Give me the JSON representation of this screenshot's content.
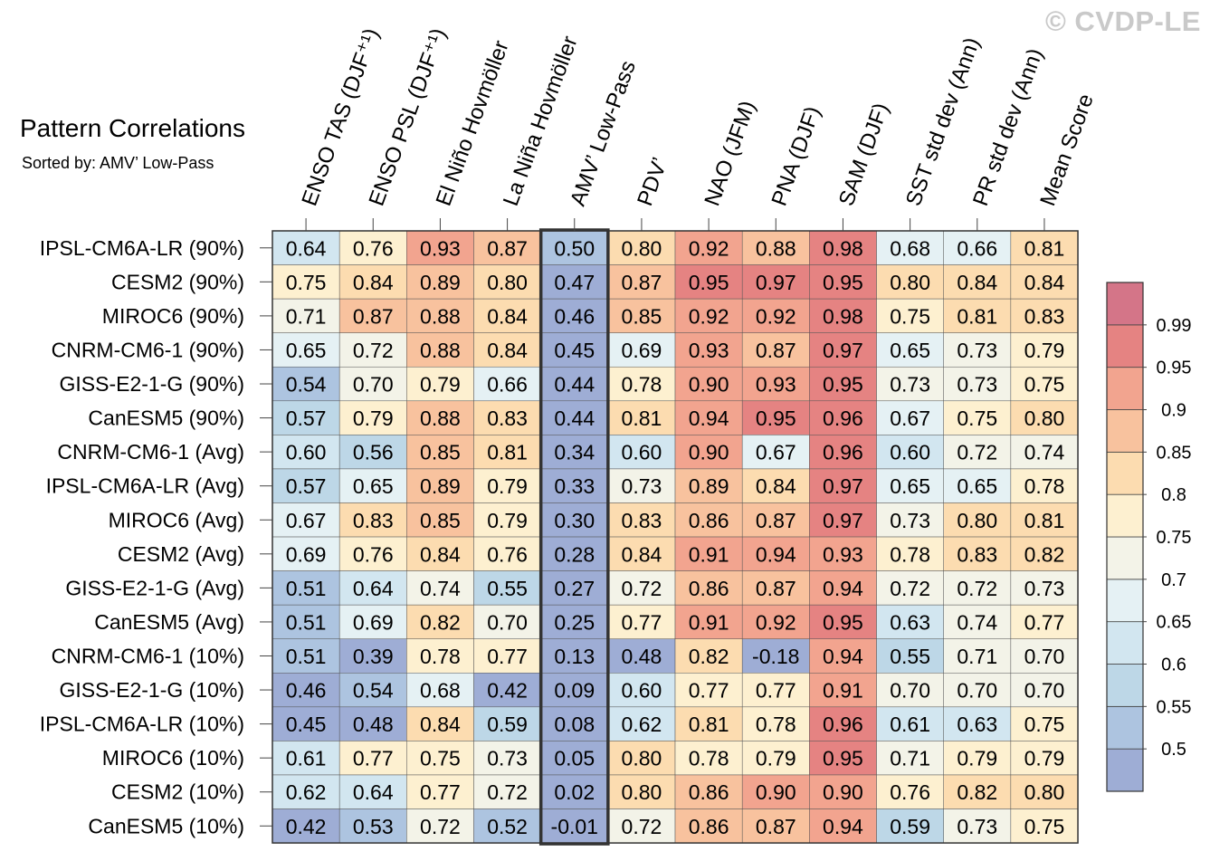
{
  "watermark": "© CVDP-LE",
  "chart_data": {
    "type": "heatmap",
    "title": "Pattern Correlations",
    "subtitle": "Sorted by: AMV’ Low-Pass",
    "columns": [
      "ENSO TAS (DJF⁺¹)",
      "ENSO PSL (DJF⁺¹)",
      "El Niño Hovmöller",
      "La Niña Hovmöller",
      "AMV’ Low-Pass",
      "PDV’",
      "NAO (JFM)",
      "PNA (DJF)",
      "SAM (DJF)",
      "SST std dev (Ann)",
      "PR std dev (Ann)",
      "Mean Score"
    ],
    "highlighted_column": "AMV’ Low-Pass",
    "rows": [
      "IPSL-CM6A-LR (90%)",
      "CESM2 (90%)",
      "MIROC6 (90%)",
      "CNRM-CM6-1 (90%)",
      "GISS-E2-1-G (90%)",
      "CanESM5 (90%)",
      "CNRM-CM6-1 (Avg)",
      "IPSL-CM6A-LR (Avg)",
      "MIROC6 (Avg)",
      "CESM2 (Avg)",
      "GISS-E2-1-G (Avg)",
      "CanESM5 (Avg)",
      "CNRM-CM6-1 (10%)",
      "GISS-E2-1-G (10%)",
      "IPSL-CM6A-LR (10%)",
      "MIROC6 (10%)",
      "CESM2 (10%)",
      "CanESM5 (10%)"
    ],
    "values": [
      [
        "0.64",
        "0.76",
        "0.93",
        "0.87",
        "0.50",
        "0.80",
        "0.92",
        "0.88",
        "0.98",
        "0.68",
        "0.66",
        "0.81"
      ],
      [
        "0.75",
        "0.84",
        "0.89",
        "0.80",
        "0.47",
        "0.87",
        "0.95",
        "0.97",
        "0.95",
        "0.80",
        "0.84",
        "0.84"
      ],
      [
        "0.71",
        "0.87",
        "0.88",
        "0.84",
        "0.46",
        "0.85",
        "0.92",
        "0.92",
        "0.98",
        "0.75",
        "0.81",
        "0.83"
      ],
      [
        "0.65",
        "0.72",
        "0.88",
        "0.84",
        "0.45",
        "0.69",
        "0.93",
        "0.87",
        "0.97",
        "0.65",
        "0.73",
        "0.79"
      ],
      [
        "0.54",
        "0.70",
        "0.79",
        "0.66",
        "0.44",
        "0.78",
        "0.90",
        "0.93",
        "0.95",
        "0.73",
        "0.73",
        "0.75"
      ],
      [
        "0.57",
        "0.79",
        "0.88",
        "0.83",
        "0.44",
        "0.81",
        "0.94",
        "0.95",
        "0.96",
        "0.67",
        "0.75",
        "0.80"
      ],
      [
        "0.60",
        "0.56",
        "0.85",
        "0.81",
        "0.34",
        "0.60",
        "0.90",
        "0.67",
        "0.96",
        "0.60",
        "0.72",
        "0.74"
      ],
      [
        "0.57",
        "0.65",
        "0.89",
        "0.79",
        "0.33",
        "0.73",
        "0.89",
        "0.84",
        "0.97",
        "0.65",
        "0.65",
        "0.78"
      ],
      [
        "0.67",
        "0.83",
        "0.85",
        "0.79",
        "0.30",
        "0.83",
        "0.86",
        "0.87",
        "0.97",
        "0.73",
        "0.80",
        "0.81"
      ],
      [
        "0.69",
        "0.76",
        "0.84",
        "0.76",
        "0.28",
        "0.84",
        "0.91",
        "0.94",
        "0.93",
        "0.78",
        "0.83",
        "0.82"
      ],
      [
        "0.51",
        "0.64",
        "0.74",
        "0.55",
        "0.27",
        "0.72",
        "0.86",
        "0.87",
        "0.94",
        "0.72",
        "0.72",
        "0.73"
      ],
      [
        "0.51",
        "0.69",
        "0.82",
        "0.70",
        "0.25",
        "0.77",
        "0.91",
        "0.92",
        "0.95",
        "0.63",
        "0.74",
        "0.77"
      ],
      [
        "0.51",
        "0.39",
        "0.78",
        "0.77",
        "0.13",
        "0.48",
        "0.82",
        "-0.18",
        "0.94",
        "0.55",
        "0.71",
        "0.70"
      ],
      [
        "0.46",
        "0.54",
        "0.68",
        "0.42",
        "0.09",
        "0.60",
        "0.77",
        "0.77",
        "0.91",
        "0.70",
        "0.70",
        "0.70"
      ],
      [
        "0.45",
        "0.48",
        "0.84",
        "0.59",
        "0.08",
        "0.62",
        "0.81",
        "0.78",
        "0.96",
        "0.61",
        "0.63",
        "0.75"
      ],
      [
        "0.61",
        "0.77",
        "0.75",
        "0.73",
        "0.05",
        "0.80",
        "0.78",
        "0.79",
        "0.95",
        "0.71",
        "0.79",
        "0.79"
      ],
      [
        "0.62",
        "0.64",
        "0.77",
        "0.72",
        "0.02",
        "0.80",
        "0.86",
        "0.90",
        "0.90",
        "0.76",
        "0.82",
        "0.80"
      ],
      [
        "0.42",
        "0.53",
        "0.72",
        "0.52",
        "-0.01",
        "0.72",
        "0.86",
        "0.87",
        "0.94",
        "0.59",
        "0.73",
        "0.75"
      ]
    ],
    "colorbar": {
      "boundaries": [
        0.5,
        0.55,
        0.6,
        0.65,
        0.7,
        0.75,
        0.8,
        0.85,
        0.9,
        0.95,
        0.99
      ],
      "labels": [
        "0.5",
        "0.55",
        "0.6",
        "0.65",
        "0.7",
        "0.75",
        "0.8",
        "0.85",
        "0.9",
        "0.95",
        "0.99"
      ],
      "colors": [
        "#9eadd5",
        "#adc4e0",
        "#bdd7e7",
        "#d2e6f0",
        "#e5f1f4",
        "#f3f3e8",
        "#fdf0d0",
        "#fcdcb0",
        "#f8c29e",
        "#f2a48f",
        "#e58382",
        "#d47588"
      ]
    }
  }
}
